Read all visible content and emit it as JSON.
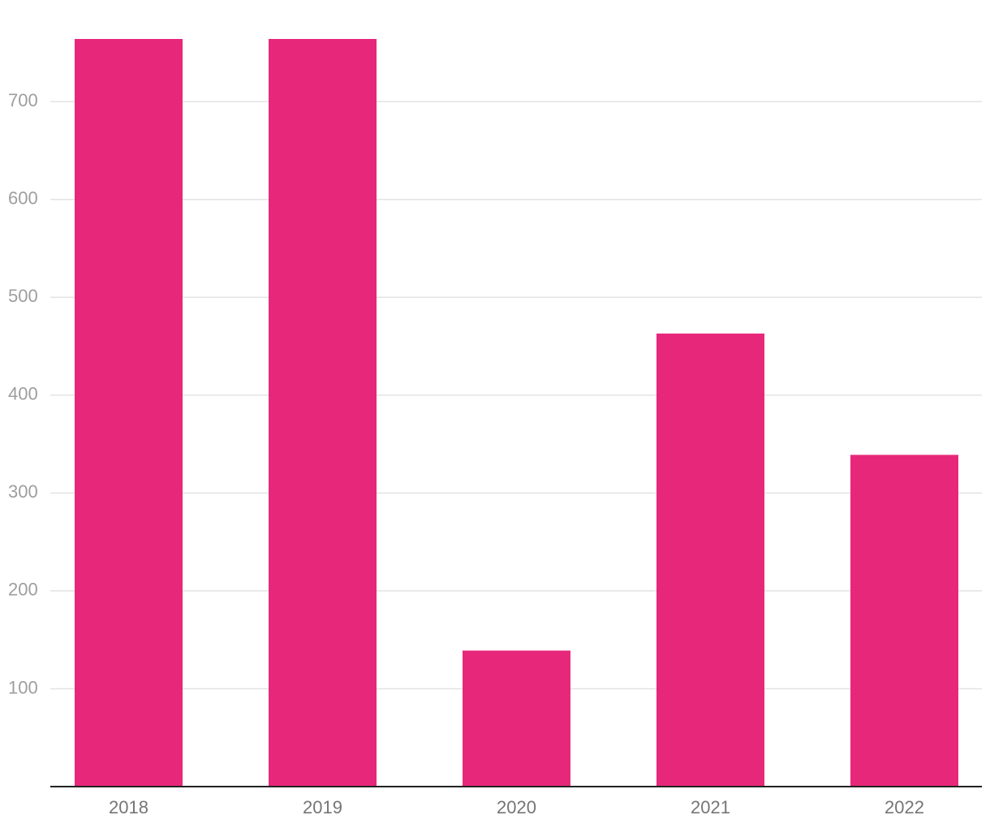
{
  "chart_data": {
    "type": "bar",
    "categories": [
      "2018",
      "2019",
      "2020",
      "2021",
      "2022"
    ],
    "values": [
      764,
      764,
      139,
      463,
      339
    ],
    "color": "#e7287a",
    "ylim": [
      0,
      764
    ],
    "yticks": [
      100,
      200,
      300,
      400,
      500,
      600,
      700
    ],
    "grid": true
  }
}
